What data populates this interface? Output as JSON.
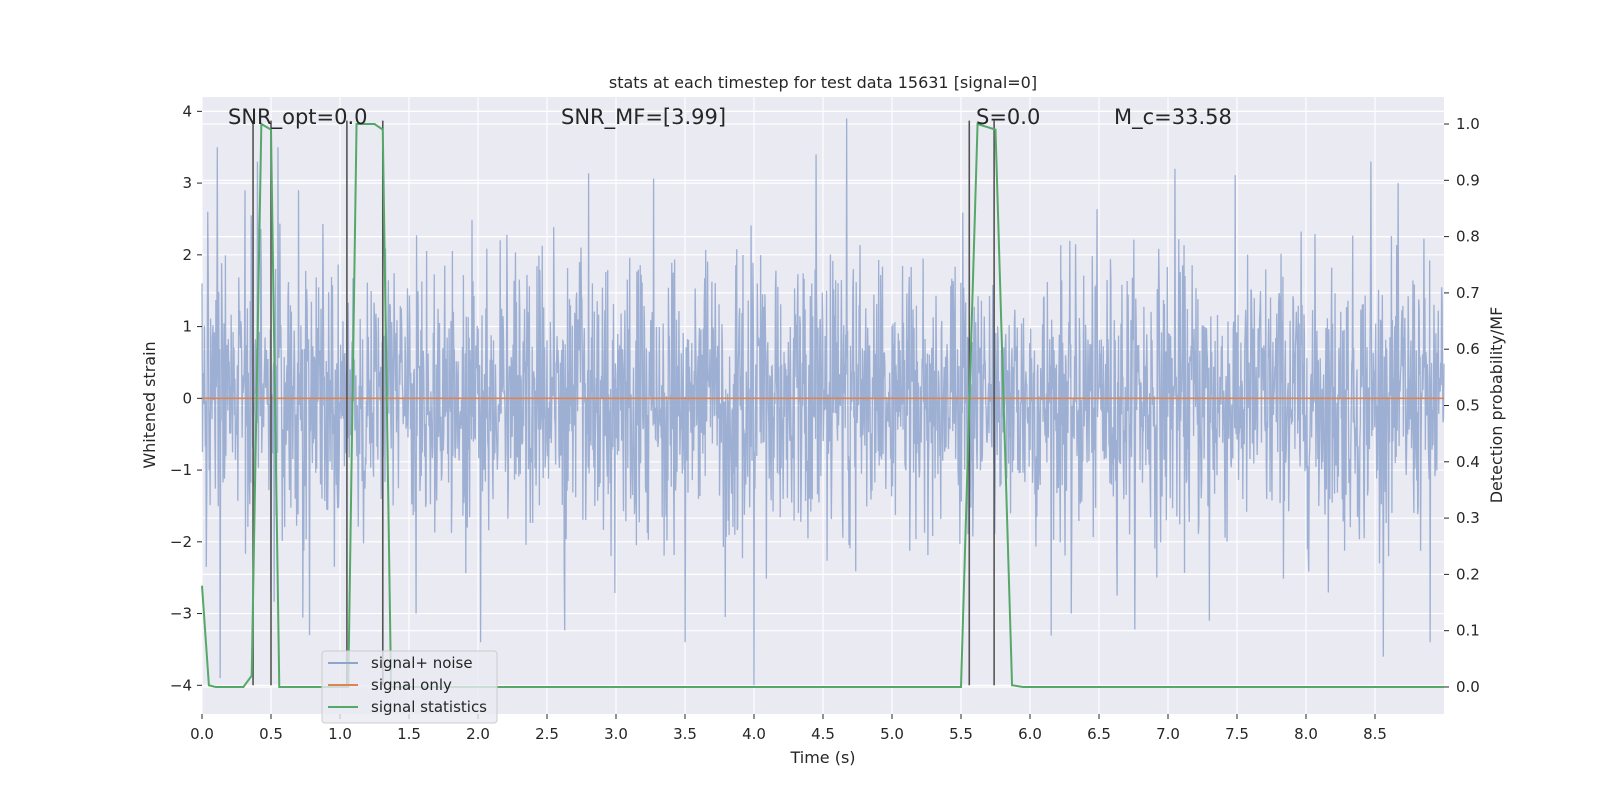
{
  "chart_data": {
    "type": "line",
    "title": "stats at each timestep for test data 15631 [signal=0]",
    "xlabel": "Time (s)",
    "ylabel": "Whitened strain",
    "ylabel_right": "Detection probability/MF",
    "xlim": [
      0,
      9.0
    ],
    "ylim": [
      -4.4,
      4.2
    ],
    "ylim_right": [
      -0.048,
      1.048
    ],
    "x_ticks": [
      "0.0",
      "0.5",
      "1.0",
      "1.5",
      "2.0",
      "2.5",
      "3.0",
      "3.5",
      "4.0",
      "4.5",
      "5.0",
      "5.5",
      "6.0",
      "6.5",
      "7.0",
      "7.5",
      "8.0",
      "8.5"
    ],
    "y_ticks": [
      "−4",
      "−3",
      "−2",
      "−1",
      "0",
      "1",
      "2",
      "3",
      "4"
    ],
    "y_ticks_right": [
      "0.0",
      "0.1",
      "0.2",
      "0.3",
      "0.4",
      "0.5",
      "0.6",
      "0.7",
      "0.8",
      "0.9",
      "1.0"
    ],
    "grid": true,
    "legend_position": "lower-left",
    "annotations": [
      {
        "text": "SNR_opt=0.0",
        "x": 0.19,
        "y": 3.93
      },
      {
        "text": "SNR_MF=[3.99]",
        "x": 2.6,
        "y": 3.93
      },
      {
        "text": "S=0.0",
        "x": 5.6,
        "y": 3.93
      },
      {
        "text": "M_c=33.58",
        "x": 6.55,
        "y": 3.93
      }
    ],
    "series": [
      {
        "name": "signal+ noise",
        "color": "#8fa4cc",
        "axis": "left",
        "description": "dense noise trace, ~9 s at high sample rate",
        "noise_std": 0.95,
        "x_range": [
          0,
          9.0
        ],
        "peaks": [
          [
            0.04,
            2.6
          ],
          [
            0.11,
            3.5
          ],
          [
            0.13,
            -3.9
          ],
          [
            0.31,
            2.9
          ],
          [
            0.4,
            3.3
          ],
          [
            0.55,
            3.5
          ],
          [
            0.5,
            -2.7
          ],
          [
            0.7,
            2.9
          ],
          [
            0.78,
            -3.3
          ],
          [
            1.55,
            -3.0
          ],
          [
            2.02,
            -3.4
          ],
          [
            3.5,
            -3.4
          ],
          [
            4.0,
            -4.0
          ],
          [
            4.45,
            3.4
          ],
          [
            4.67,
            3.9
          ],
          [
            6.3,
            -3.0
          ],
          [
            7.05,
            3.2
          ],
          [
            7.3,
            -3.1
          ],
          [
            8.47,
            3.3
          ],
          [
            8.9,
            -3.4
          ]
        ]
      },
      {
        "name": "signal only",
        "color": "#dd8452",
        "axis": "left",
        "x": [
          0,
          9.0
        ],
        "y": [
          0,
          0
        ]
      },
      {
        "name": "signal statistics",
        "color": "#55a868",
        "axis": "right",
        "x": [
          0.0,
          0.05,
          0.1,
          0.3,
          0.36,
          0.43,
          0.5,
          0.56,
          0.6,
          1.0,
          1.06,
          1.12,
          1.25,
          1.31,
          1.37,
          1.5,
          5.4,
          5.5,
          5.62,
          5.75,
          5.87,
          5.95,
          9.0
        ],
        "y": [
          0.18,
          0.003,
          0.0,
          0.0,
          0.02,
          1.0,
          0.99,
          0.0,
          0.0,
          0.0,
          0.0,
          1.0,
          1.0,
          0.99,
          0.0,
          0.0,
          0.0,
          0.0,
          1.0,
          0.99,
          0.003,
          0.0,
          0.0
        ]
      }
    ],
    "vertical_markers": {
      "color": "#555555",
      "x": [
        0.37,
        0.5,
        1.05,
        1.31,
        5.56,
        5.74
      ],
      "y_range": [
        -4.0,
        3.87
      ]
    }
  }
}
